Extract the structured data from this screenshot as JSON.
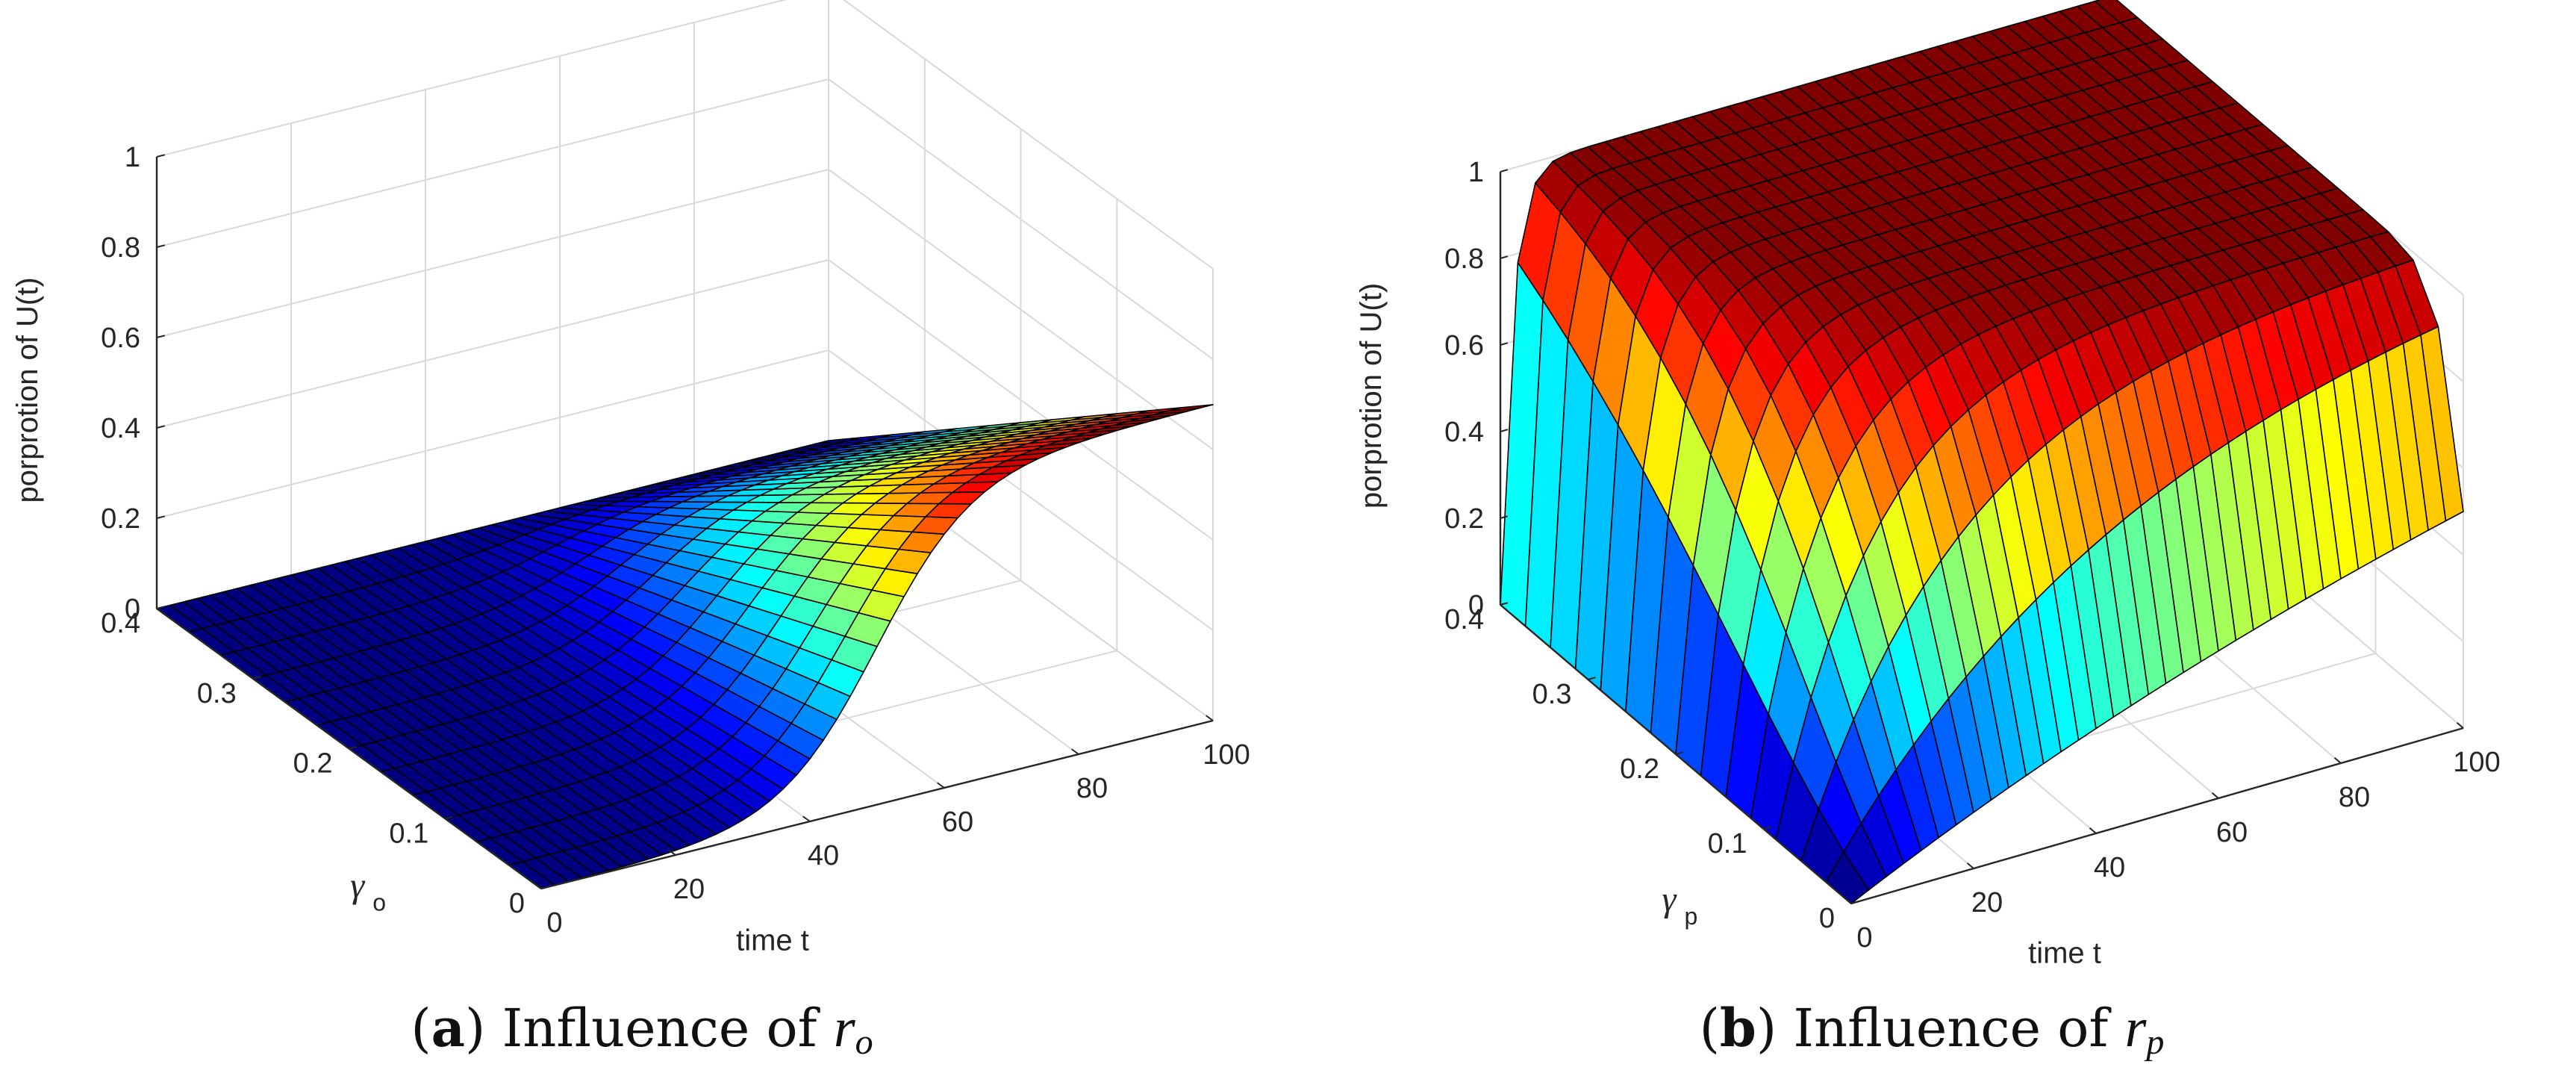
{
  "chart_data": [
    {
      "type": "surface3d",
      "panel_letter": "a",
      "caption_text": "Influence of",
      "caption_var": "r",
      "caption_sub": "o",
      "zlabel": "porprotion of U(t)",
      "xlabel": "time t",
      "ylabel_symbol": "γ",
      "ylabel_sub": "o",
      "xlim": [
        0,
        100
      ],
      "ylim": [
        0,
        0.4
      ],
      "zlim": [
        0,
        1
      ],
      "xticks": [
        "0",
        "20",
        "40",
        "60",
        "80",
        "100"
      ],
      "yticks": [
        "0",
        "0.1",
        "0.2",
        "0.3",
        "0.4"
      ],
      "zticks": [
        "0",
        "0.2",
        "0.4",
        "0.6",
        "0.8",
        "1"
      ],
      "grid": true,
      "colormap": "jet",
      "model": "logistic",
      "midpoint_t": 50,
      "steepness": 0.14,
      "amplitude_at_0": 0.7,
      "amplitude_at_0_4": 0,
      "grid_resolution": [
        50,
        12
      ]
    },
    {
      "type": "surface3d",
      "panel_letter": "b",
      "caption_text": "Influence of",
      "caption_var": "r",
      "caption_sub": "p",
      "zlabel": "porprotion of U(t)",
      "xlabel": "time t",
      "ylabel_symbol": "γ",
      "ylabel_sub": "p",
      "xlim": [
        0,
        100
      ],
      "ylim": [
        0,
        0.4
      ],
      "zlim": [
        0,
        1
      ],
      "xticks": [
        "0",
        "20",
        "40",
        "60",
        "80",
        "100"
      ],
      "yticks": [
        "0",
        "0.1",
        "0.2",
        "0.3",
        "0.4"
      ],
      "zticks": [
        "0",
        "0.2",
        "0.4",
        "0.6",
        "0.8",
        "1"
      ],
      "grid": true,
      "colormap": "jet",
      "model": "saturating",
      "max_value": 1.0,
      "value_at_t100_gamma0": 0.5,
      "grid_resolution": [
        35,
        14
      ]
    }
  ]
}
